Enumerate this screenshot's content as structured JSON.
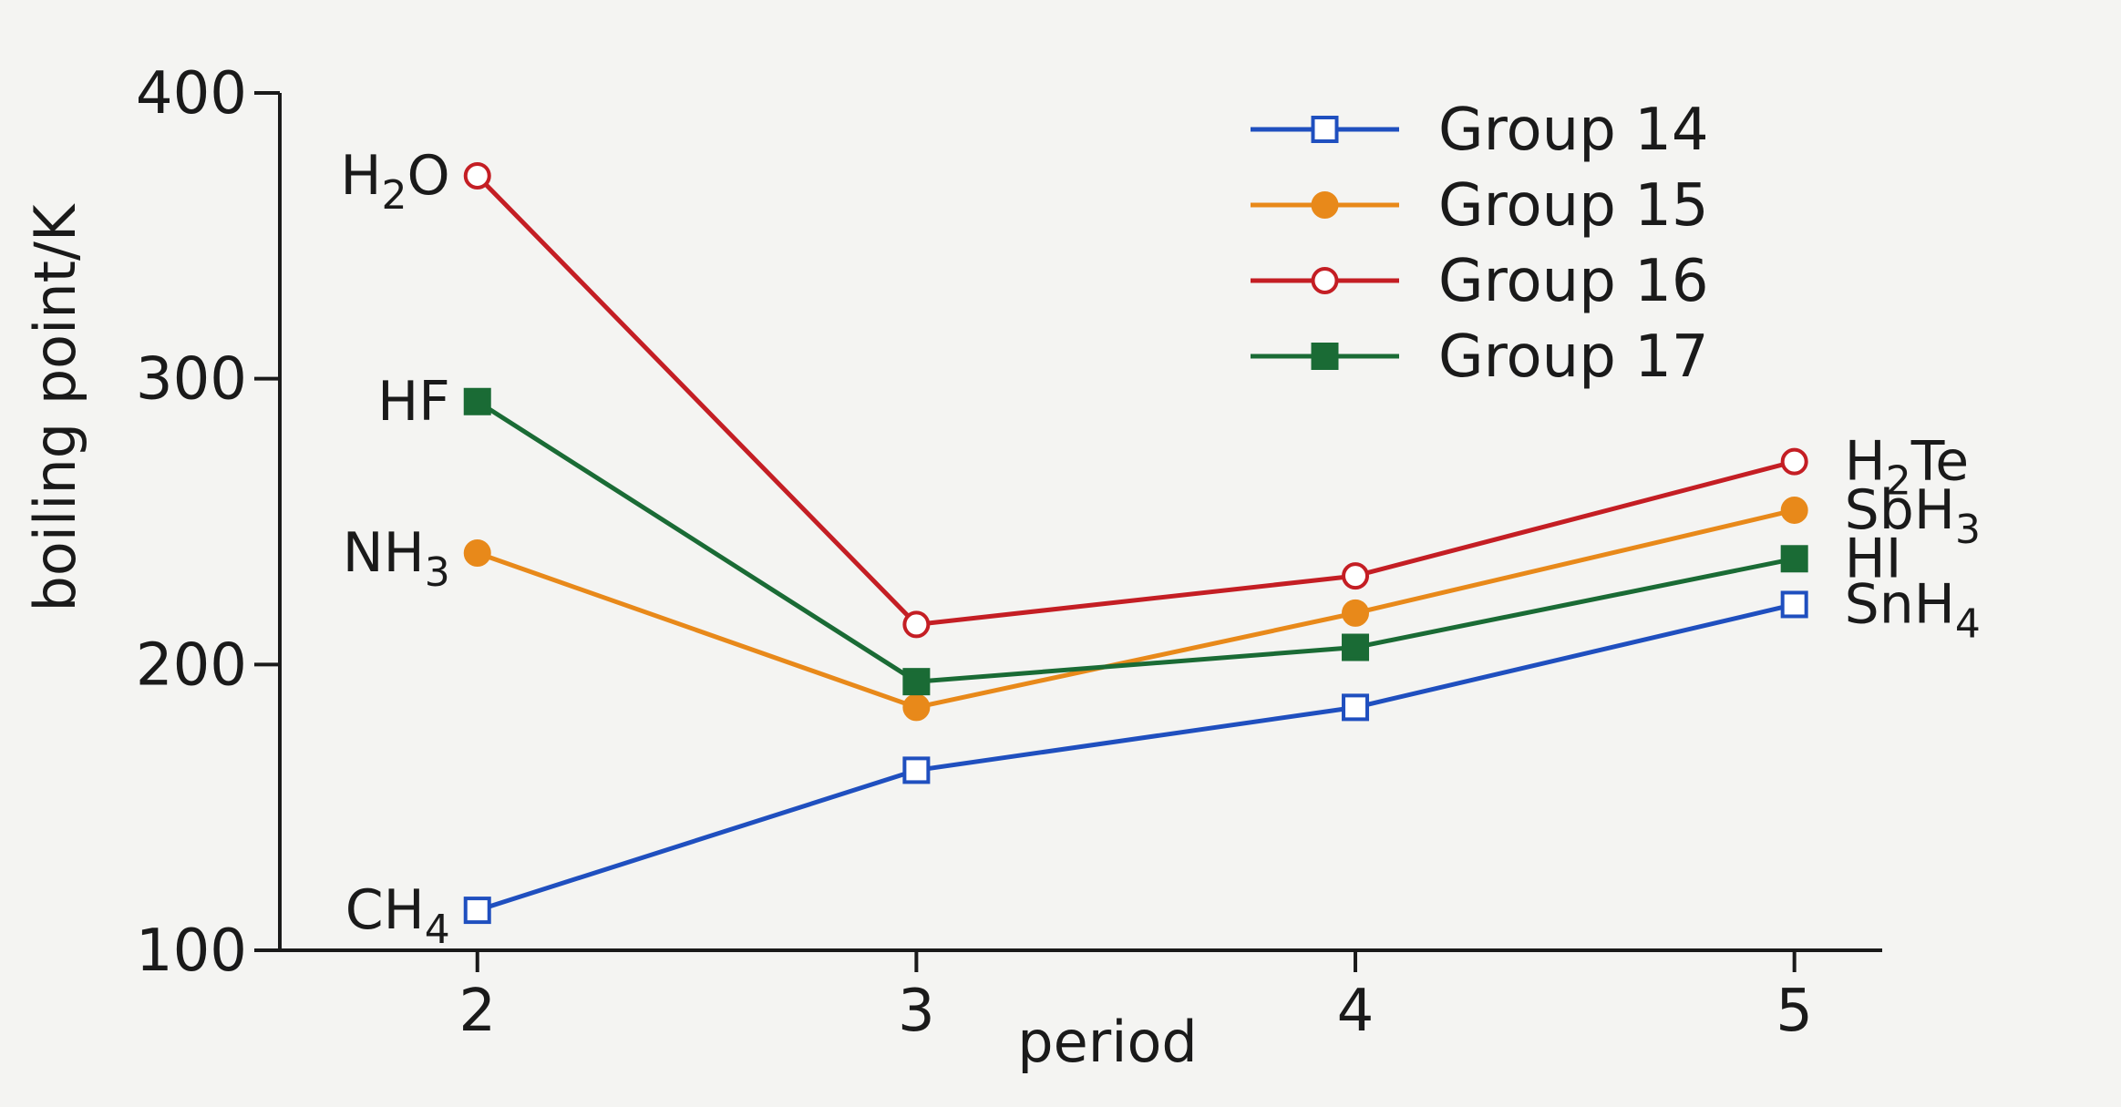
{
  "chart_data": {
    "type": "line",
    "title": "",
    "xlabel": "period",
    "ylabel": "boiling point/K",
    "x": [
      2,
      3,
      4,
      5
    ],
    "xticks": [
      "2",
      "3",
      "4",
      "5"
    ],
    "yticks": [
      "100",
      "200",
      "300",
      "400"
    ],
    "xlim": [
      1.55,
      5.2
    ],
    "ylim": [
      100,
      400
    ],
    "grid": false,
    "legend_position": "top-right",
    "series": [
      {
        "name": "Group 14",
        "values": [
          114,
          163,
          185,
          221
        ],
        "color": "#1f4fbf",
        "marker": "square-open",
        "labels": [
          {
            "x": 2,
            "base": "CH",
            "sub": "4",
            "tail": "",
            "side": "left"
          },
          {
            "x": 5,
            "base": "SnH",
            "sub": "4",
            "tail": "",
            "side": "right"
          }
        ]
      },
      {
        "name": "Group 15",
        "values": [
          239,
          185,
          218,
          254
        ],
        "color": "#e8891a",
        "marker": "circle-filled",
        "labels": [
          {
            "x": 2,
            "base": "NH",
            "sub": "3",
            "tail": "",
            "side": "left"
          },
          {
            "x": 5,
            "base": "SbH",
            "sub": "3",
            "tail": "",
            "side": "right"
          }
        ]
      },
      {
        "name": "Group 16",
        "values": [
          371,
          214,
          231,
          271
        ],
        "color": "#c41e24",
        "marker": "circle-open",
        "labels": [
          {
            "x": 2,
            "base": "H",
            "sub": "2",
            "tail": "O",
            "side": "left"
          },
          {
            "x": 5,
            "base": "H",
            "sub": "2",
            "tail": "Te",
            "side": "right"
          }
        ]
      },
      {
        "name": "Group 17",
        "values": [
          292,
          194,
          206,
          237
        ],
        "color": "#1a6b35",
        "marker": "square-filled",
        "labels": [
          {
            "x": 2,
            "base": "HF",
            "sub": "",
            "tail": "",
            "side": "left"
          },
          {
            "x": 5,
            "base": "HI",
            "sub": "",
            "tail": "",
            "side": "right"
          }
        ]
      }
    ]
  }
}
